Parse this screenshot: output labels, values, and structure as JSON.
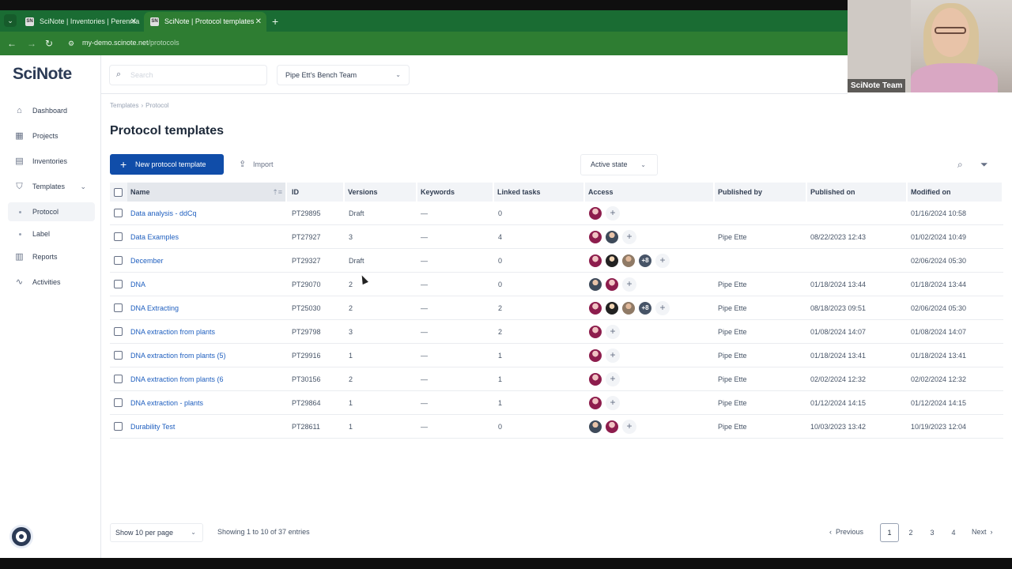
{
  "browser": {
    "tabs": [
      {
        "title": "SciNote | Inventories | Perennia"
      },
      {
        "title": "SciNote | Protocol templates"
      }
    ],
    "url_host": "my-demo.scinote.net",
    "url_path": "/protocols"
  },
  "webcam": {
    "label": "SciNote Team"
  },
  "sidebar": {
    "logo": "SciNote",
    "items": [
      {
        "label": "Dashboard",
        "icon": "home-icon"
      },
      {
        "label": "Projects",
        "icon": "grid-icon"
      },
      {
        "label": "Inventories",
        "icon": "archive-icon"
      },
      {
        "label": "Templates",
        "icon": "shield-icon"
      },
      {
        "label": "Protocol"
      },
      {
        "label": "Label"
      },
      {
        "label": "Reports",
        "icon": "report-icon"
      },
      {
        "label": "Activities",
        "icon": "activity-icon"
      }
    ]
  },
  "header": {
    "search_placeholder": "Search",
    "team": "Pipe Ett's Bench Team"
  },
  "breadcrumb": [
    "Templates",
    "Protocol"
  ],
  "page_title": "Protocol templates",
  "toolbar": {
    "new_label": "New protocol template",
    "import_label": "Import",
    "state_label": "Active state"
  },
  "table": {
    "columns": [
      "Name",
      "ID",
      "Versions",
      "Keywords",
      "Linked tasks",
      "Access",
      "Published by",
      "Published on",
      "Modified on"
    ],
    "rows": [
      {
        "name": "Data analysis - ddCq",
        "id": "PT29895",
        "versions": "Draft",
        "keywords": "—",
        "linked": "0",
        "published_by": "",
        "published_on": "",
        "modified_on": "01/16/2024 10:58"
      },
      {
        "name": "Data Examples",
        "id": "PT27927",
        "versions": "3",
        "keywords": "—",
        "linked": "4",
        "published_by": "Pipe Ette",
        "published_on": "08/22/2023 12:43",
        "modified_on": "01/02/2024 10:49"
      },
      {
        "name": "December",
        "id": "PT29327",
        "versions": "Draft",
        "keywords": "—",
        "linked": "0",
        "published_by": "",
        "published_on": "",
        "modified_on": "02/06/2024 05:30"
      },
      {
        "name": "DNA",
        "id": "PT29070",
        "versions": "2",
        "keywords": "—",
        "linked": "0",
        "published_by": "Pipe Ette",
        "published_on": "01/18/2024 13:44",
        "modified_on": "01/18/2024 13:44"
      },
      {
        "name": "DNA Extracting",
        "id": "PT25030",
        "versions": "2",
        "keywords": "—",
        "linked": "2",
        "published_by": "Pipe Ette",
        "published_on": "08/18/2023 09:51",
        "modified_on": "02/06/2024 05:30"
      },
      {
        "name": "DNA extraction from plants",
        "id": "PT29798",
        "versions": "3",
        "keywords": "—",
        "linked": "2",
        "published_by": "Pipe Ette",
        "published_on": "01/08/2024 14:07",
        "modified_on": "01/08/2024 14:07"
      },
      {
        "name": "DNA extraction from plants (5)",
        "id": "PT29916",
        "versions": "1",
        "keywords": "—",
        "linked": "1",
        "published_by": "Pipe Ette",
        "published_on": "01/18/2024 13:41",
        "modified_on": "01/18/2024 13:41"
      },
      {
        "name": "DNA extraction from plants (6",
        "id": "PT30156",
        "versions": "2",
        "keywords": "—",
        "linked": "1",
        "published_by": "Pipe Ette",
        "published_on": "02/02/2024 12:32",
        "modified_on": "02/02/2024 12:32"
      },
      {
        "name": "DNA extraction - plants",
        "id": "PT29864",
        "versions": "1",
        "keywords": "—",
        "linked": "1",
        "published_by": "Pipe Ette",
        "published_on": "01/12/2024 14:15",
        "modified_on": "01/12/2024 14:15"
      },
      {
        "name": "Durability Test",
        "id": "PT28611",
        "versions": "1",
        "keywords": "—",
        "linked": "0",
        "published_by": "Pipe Ette",
        "published_on": "10/03/2023 13:42",
        "modified_on": "10/19/2023 12:04"
      }
    ],
    "more_badge": "+8"
  },
  "footer": {
    "per_page": "Show 10 per page",
    "showing": "Showing 1 to 10 of 37 entries",
    "prev": "Previous",
    "next": "Next",
    "pages": [
      "1",
      "2",
      "3",
      "4"
    ]
  }
}
